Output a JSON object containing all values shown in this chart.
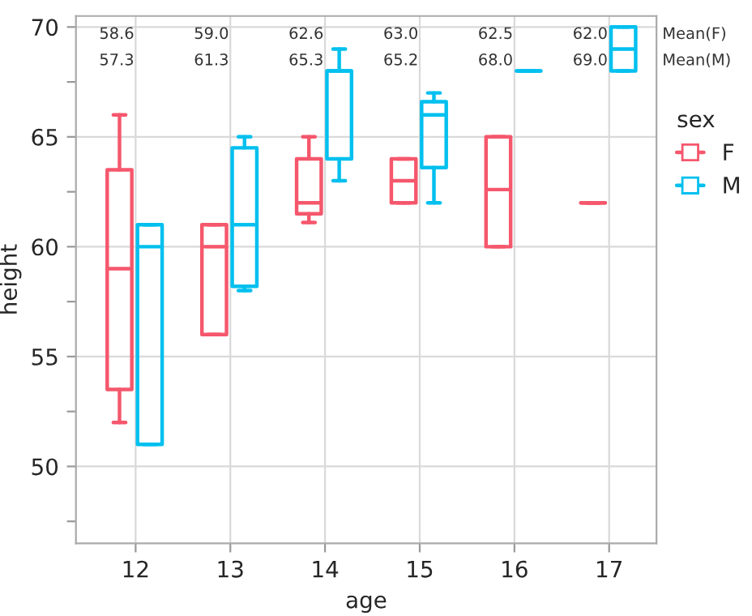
{
  "chart_data": {
    "type": "box",
    "xlabel": "age",
    "ylabel": "height",
    "legend_title": "sex",
    "categories": [
      "12",
      "13",
      "14",
      "15",
      "16",
      "17"
    ],
    "series": [
      {
        "name": "F",
        "color": "#f5576c",
        "boxes": [
          {
            "low": 52,
            "q1": 53.5,
            "median": 59,
            "q3": 63.5,
            "high": 66
          },
          {
            "low": 56,
            "q1": 56,
            "median": 60,
            "q3": 61,
            "high": 61
          },
          {
            "low": 61.1,
            "q1": 61.5,
            "median": 62,
            "q3": 64,
            "high": 65
          },
          {
            "low": 62,
            "q1": 62,
            "median": 63,
            "q3": 64,
            "high": 64
          },
          {
            "low": 60,
            "q1": 60,
            "median": 62.6,
            "q3": 65,
            "high": 65
          },
          {
            "low": 62,
            "q1": 62,
            "median": 62,
            "q3": 62,
            "high": 62
          }
        ]
      },
      {
        "name": "M",
        "color": "#00c0ef",
        "boxes": [
          {
            "low": 51,
            "q1": 51,
            "median": 60,
            "q3": 61,
            "high": 61
          },
          {
            "low": 58,
            "q1": 58.2,
            "median": 61,
            "q3": 64.5,
            "high": 65
          },
          {
            "low": 63,
            "q1": 64,
            "median": 68,
            "q3": 68,
            "high": 69
          },
          {
            "low": 62,
            "q1": 63.6,
            "median": 66,
            "q3": 66.6,
            "high": 67
          },
          {
            "low": 68,
            "q1": 68,
            "median": 68,
            "q3": 68,
            "high": 68
          },
          {
            "low": 68,
            "q1": 68,
            "median": 69,
            "q3": 70,
            "high": 70
          }
        ]
      }
    ],
    "annotations": [
      "58.6",
      "59.0",
      "62.6",
      "63.0",
      "62.5",
      "62.0",
      "Mean(F)",
      "57.3",
      "61.3",
      "65.3",
      "65.2",
      "68.0",
      "69.0",
      "Mean(M)"
    ],
    "ylim": [
      46.5,
      70.5
    ],
    "yticks": [
      {
        "value": 47.5,
        "label": null
      },
      50,
      {
        "value": 52.5,
        "label": null
      },
      55,
      {
        "value": 57.5,
        "label": null
      },
      60,
      {
        "value": 62.5,
        "label": null
      },
      65,
      {
        "value": 67.5,
        "label": null
      },
      70
    ],
    "grid": true,
    "legend": "right"
  }
}
